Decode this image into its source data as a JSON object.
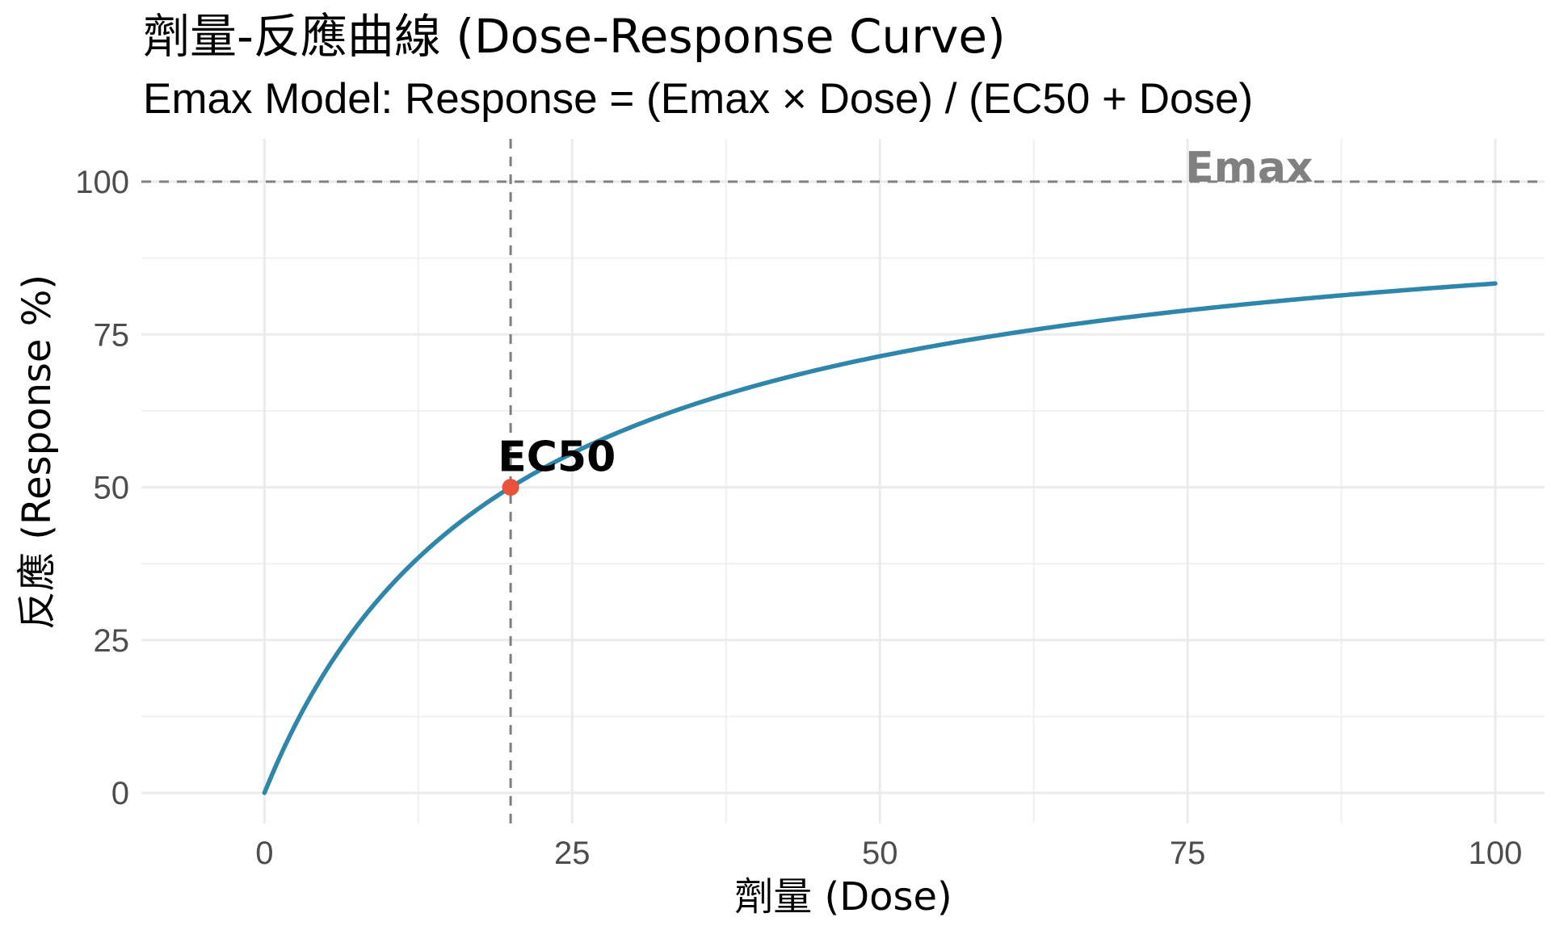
{
  "chart_data": {
    "type": "line",
    "title": "劑量-反應曲線 (Dose-Response Curve)",
    "subtitle": "Emax Model: Response = (Emax × Dose) / (EC50 + Dose)",
    "xlabel": "劑量 (Dose)",
    "ylabel": "反應 (Response %)",
    "xlim": [
      -10,
      104
    ],
    "ylim": [
      -5,
      107
    ],
    "x_ticks": [
      0,
      25,
      50,
      75,
      100
    ],
    "y_ticks": [
      0,
      25,
      50,
      75,
      100
    ],
    "x_tick_labels": [
      "0",
      "25",
      "50",
      "75",
      "100"
    ],
    "y_tick_labels": [
      "0",
      "25",
      "50",
      "75",
      "100"
    ],
    "grid": true,
    "model": {
      "emax": 100,
      "ec50": 20
    },
    "series": [
      {
        "x": [
          0,
          2,
          4,
          6,
          8,
          10,
          12,
          15,
          20,
          25,
          30,
          40,
          50,
          60,
          70,
          80,
          90,
          100
        ],
        "y": [
          0,
          9.09,
          16.67,
          23.08,
          28.57,
          33.33,
          37.5,
          42.86,
          50,
          55.56,
          60,
          66.67,
          71.43,
          75,
          77.78,
          80,
          81.82,
          83.33
        ],
        "color": "#2e86ab"
      }
    ],
    "reference_lines": [
      {
        "orientation": "horizontal",
        "value": 100,
        "style": "dashed",
        "color": "#808080"
      },
      {
        "orientation": "vertical",
        "value": 20,
        "style": "dashed",
        "color": "#808080"
      }
    ],
    "highlight_point": {
      "x": 20,
      "y": 50,
      "color": "#e8513a"
    },
    "annotations": [
      {
        "text": "Emax",
        "x": 80,
        "y": 100,
        "color": "#808080"
      },
      {
        "text": "EC50",
        "x": 29,
        "y": 55,
        "color": "#000000"
      }
    ]
  }
}
